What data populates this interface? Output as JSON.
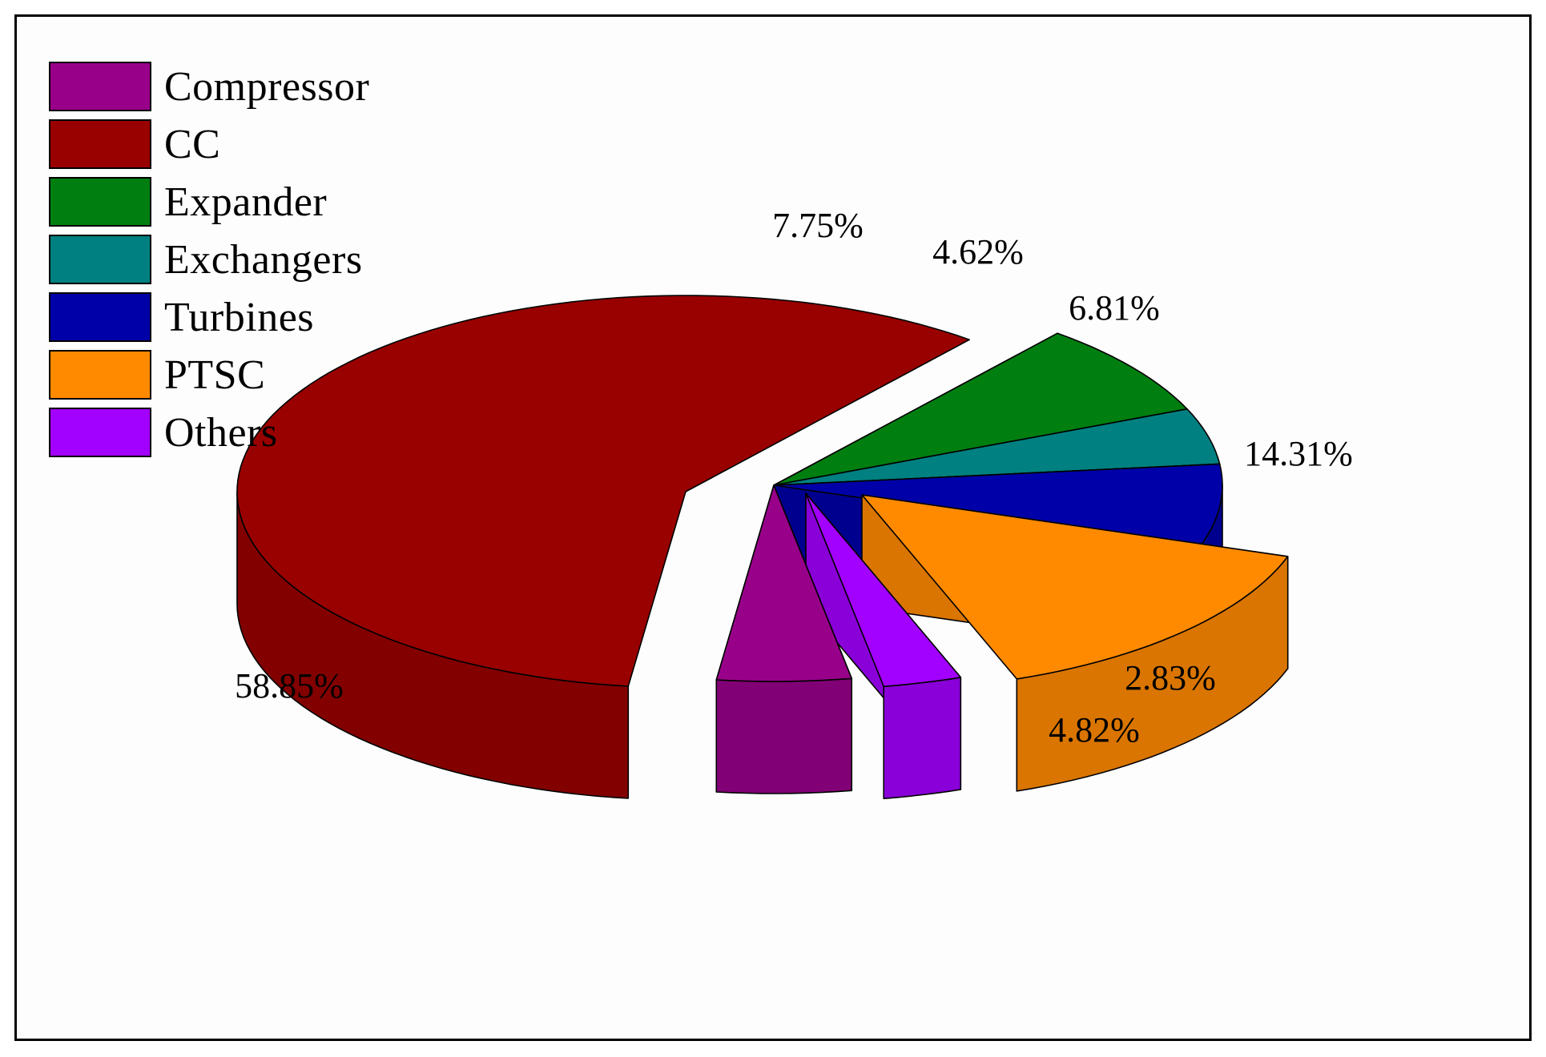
{
  "chart_data": {
    "type": "pie",
    "style": "3d-exploded",
    "title": "",
    "legend_position": "top-left",
    "slices": [
      {
        "name": "Compressor",
        "value": 4.82,
        "label": "4.82%",
        "color": "#99008a"
      },
      {
        "name": "CC",
        "value": 58.85,
        "label": "58.85%",
        "color": "#990000"
      },
      {
        "name": "Expander",
        "value": 7.75,
        "label": "7.75%",
        "color": "#007f10"
      },
      {
        "name": "Exchangers",
        "value": 4.62,
        "label": "4.62%",
        "color": "#008080"
      },
      {
        "name": "Turbines",
        "value": 6.81,
        "label": "6.81%",
        "color": "#0000a8"
      },
      {
        "name": "PTSC",
        "value": 14.31,
        "label": "14.31%",
        "color": "#ff8a00"
      },
      {
        "name": "Others",
        "value": 2.83,
        "label": "2.83%",
        "color": "#a200ff"
      }
    ]
  }
}
